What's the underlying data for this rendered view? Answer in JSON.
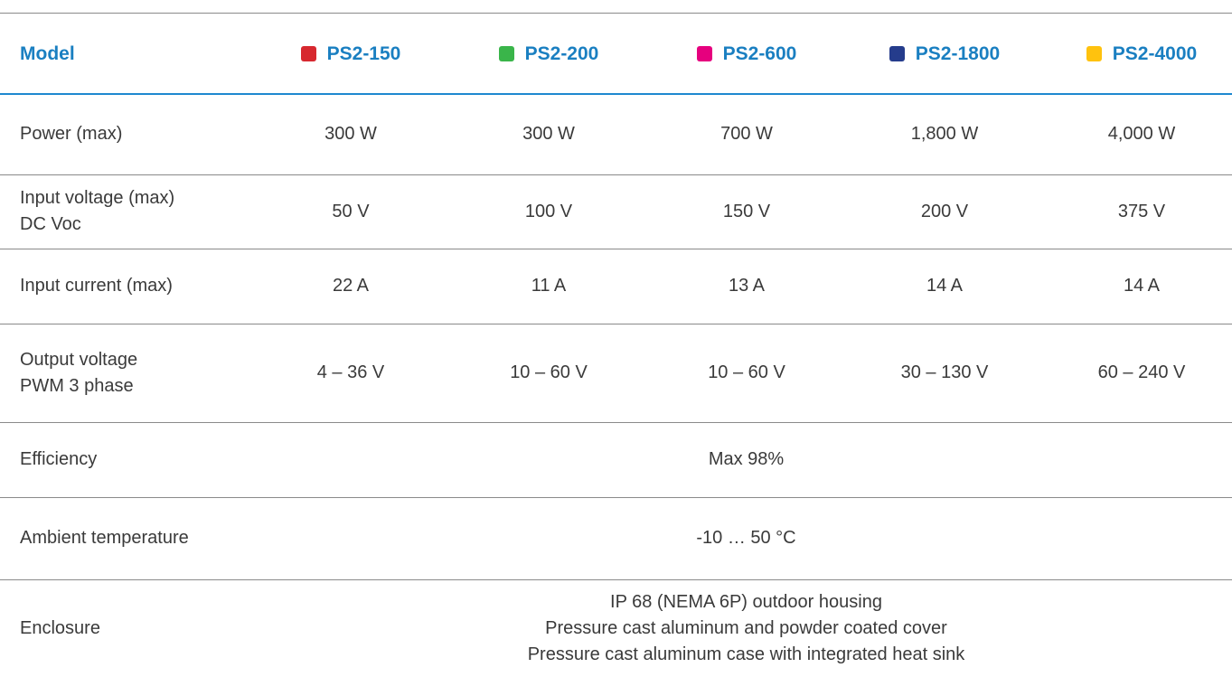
{
  "header": {
    "label": "Model",
    "models": [
      {
        "name": "PS2-150",
        "color": "#d7282f"
      },
      {
        "name": "PS2-200",
        "color": "#3ab54a"
      },
      {
        "name": "PS2-600",
        "color": "#e6007e"
      },
      {
        "name": "PS2-1800",
        "color": "#253c8c"
      },
      {
        "name": "PS2-4000",
        "color": "#ffc20e"
      }
    ]
  },
  "rows": [
    {
      "label": [
        "Power (max)"
      ],
      "values": [
        "300 W",
        "300 W",
        "700 W",
        "1,800 W",
        "4,000 W"
      ]
    },
    {
      "label": [
        "Input voltage (max)",
        "DC Voc"
      ],
      "values": [
        "50 V",
        "100 V",
        "150 V",
        "200 V",
        "375 V"
      ]
    },
    {
      "label": [
        "Input current (max)"
      ],
      "values": [
        "22 A",
        "11 A",
        "13 A",
        "14 A",
        "14 A"
      ]
    },
    {
      "label": [
        "Output voltage",
        "PWM 3 phase"
      ],
      "values": [
        "4 – 36 V",
        "10 – 60 V",
        "10 – 60 V",
        "30 – 130 V",
        "60 – 240 V"
      ]
    },
    {
      "label": [
        "Efficiency"
      ],
      "shared": [
        "Max 98%"
      ]
    },
    {
      "label": [
        "Ambient temperature"
      ],
      "shared": [
        "-10 … 50 °C"
      ]
    },
    {
      "label": [
        "Enclosure"
      ],
      "shared": [
        "IP 68 (NEMA 6P) outdoor housing",
        "Pressure cast aluminum and powder coated cover",
        "Pressure cast aluminum case with integrated heat sink"
      ]
    }
  ]
}
